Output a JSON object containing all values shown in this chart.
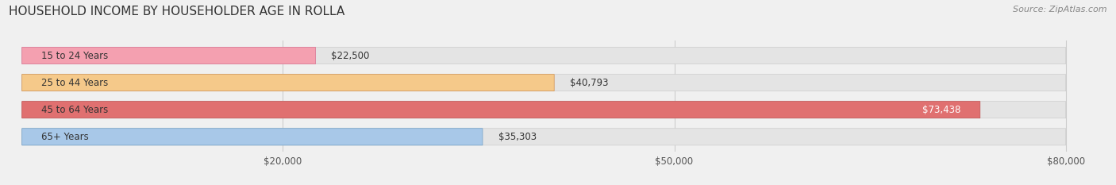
{
  "title": "HOUSEHOLD INCOME BY HOUSEHOLDER AGE IN ROLLA",
  "source": "Source: ZipAtlas.com",
  "categories": [
    "15 to 24 Years",
    "25 to 44 Years",
    "45 to 64 Years",
    "65+ Years"
  ],
  "values": [
    22500,
    40793,
    73438,
    35303
  ],
  "bar_colors": [
    "#f4a0b0",
    "#f5c98a",
    "#e07070",
    "#a8c8e8"
  ],
  "bar_edge_colors": [
    "#d87090",
    "#d09050",
    "#c05050",
    "#70a0c8"
  ],
  "label_colors": [
    "#444444",
    "#444444",
    "#ffffff",
    "#444444"
  ],
  "xlim": [
    0,
    80000
  ],
  "xticks": [
    20000,
    50000,
    80000
  ],
  "xtick_labels": [
    "$20,000",
    "$50,000",
    "$80,000"
  ],
  "bg_color": "#f0f0f0",
  "bar_bg_color": "#e4e4e4",
  "title_fontsize": 11,
  "source_fontsize": 8,
  "label_fontsize": 8.5,
  "value_fontsize": 8.5,
  "tick_fontsize": 8.5
}
